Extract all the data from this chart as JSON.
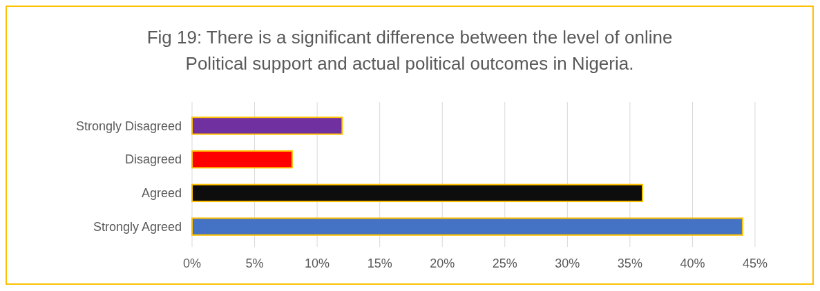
{
  "chart_data": {
    "type": "bar",
    "orientation": "horizontal",
    "title": "Fig 19: There is a significant difference between the level of online\nPolitical support and actual political outcomes in Nigeria.",
    "categories": [
      "Strongly Disagreed",
      "Disagreed",
      "Agreed",
      "Strongly Agreed"
    ],
    "values": [
      12,
      8,
      36,
      44
    ],
    "colors": [
      "#7030a0",
      "#ff0000",
      "#0d0d0d",
      "#4472c4"
    ],
    "xlim": [
      0,
      45
    ],
    "xticks": [
      {
        "value": 0,
        "label": "0%"
      },
      {
        "value": 5,
        "label": "5%"
      },
      {
        "value": 10,
        "label": "10%"
      },
      {
        "value": 15,
        "label": "15%"
      },
      {
        "value": 20,
        "label": "20%"
      },
      {
        "value": 25,
        "label": "25%"
      },
      {
        "value": 30,
        "label": "30%"
      },
      {
        "value": 35,
        "label": "35%"
      },
      {
        "value": 40,
        "label": "40%"
      },
      {
        "value": 45,
        "label": "45%"
      }
    ],
    "grid": "x"
  }
}
